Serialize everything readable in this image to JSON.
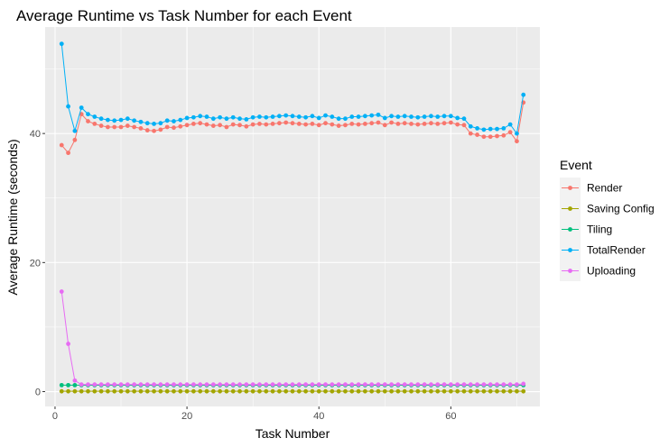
{
  "chart_data": {
    "type": "line",
    "title": "Average Runtime vs Task Number for each Event",
    "xlabel": "Task Number",
    "ylabel": "Average Runtime (seconds)",
    "xlim": [
      -1.5,
      73.5
    ],
    "ylim": [
      -2.3,
      56.5
    ],
    "xticks": [
      0,
      20,
      40,
      60
    ],
    "yticks": [
      0,
      20,
      40
    ],
    "grid": true,
    "legend": {
      "title": "Event",
      "placement": "right"
    },
    "x": [
      1,
      2,
      3,
      4,
      5,
      6,
      7,
      8,
      9,
      10,
      11,
      12,
      13,
      14,
      15,
      16,
      17,
      18,
      19,
      20,
      21,
      22,
      23,
      24,
      25,
      26,
      27,
      28,
      29,
      30,
      31,
      32,
      33,
      34,
      35,
      36,
      37,
      38,
      39,
      40,
      41,
      42,
      43,
      44,
      45,
      46,
      47,
      48,
      49,
      50,
      51,
      52,
      53,
      54,
      55,
      56,
      57,
      58,
      59,
      60,
      61,
      62,
      63,
      64,
      65,
      66,
      67,
      68,
      69,
      70,
      71
    ],
    "series": [
      {
        "name": "Render",
        "color": "#F8766D",
        "values": [
          38.2,
          37.0,
          39.0,
          43.0,
          41.9,
          41.5,
          41.2,
          41.0,
          41.0,
          41.0,
          41.2,
          41.0,
          40.8,
          40.5,
          40.4,
          40.6,
          41.0,
          40.9,
          41.1,
          41.3,
          41.5,
          41.6,
          41.4,
          41.2,
          41.3,
          41.0,
          41.4,
          41.3,
          41.1,
          41.4,
          41.5,
          41.4,
          41.5,
          41.6,
          41.7,
          41.6,
          41.5,
          41.4,
          41.5,
          41.3,
          41.6,
          41.4,
          41.2,
          41.3,
          41.5,
          41.4,
          41.5,
          41.6,
          41.7,
          41.3,
          41.7,
          41.5,
          41.6,
          41.5,
          41.4,
          41.5,
          41.6,
          41.5,
          41.6,
          41.7,
          41.4,
          41.3,
          40.0,
          39.8,
          39.5,
          39.5,
          39.6,
          39.7,
          40.2,
          38.8,
          44.8
        ]
      },
      {
        "name": "Saving Config",
        "color": "#A3A500",
        "values": [
          0.05,
          0.05,
          0.05,
          0.05,
          0.05,
          0.05,
          0.05,
          0.05,
          0.05,
          0.05,
          0.05,
          0.05,
          0.05,
          0.05,
          0.05,
          0.05,
          0.05,
          0.05,
          0.05,
          0.05,
          0.05,
          0.05,
          0.05,
          0.05,
          0.05,
          0.05,
          0.05,
          0.05,
          0.05,
          0.05,
          0.05,
          0.05,
          0.05,
          0.05,
          0.05,
          0.05,
          0.05,
          0.05,
          0.05,
          0.05,
          0.05,
          0.05,
          0.05,
          0.05,
          0.05,
          0.05,
          0.05,
          0.05,
          0.05,
          0.05,
          0.05,
          0.05,
          0.05,
          0.05,
          0.05,
          0.05,
          0.05,
          0.05,
          0.05,
          0.05,
          0.05,
          0.05,
          0.05,
          0.05,
          0.05,
          0.05,
          0.05,
          0.05,
          0.05,
          0.05,
          0.05
        ]
      },
      {
        "name": "Tiling",
        "color": "#00BF7D",
        "values": [
          1.0,
          1.0,
          1.0,
          1.0,
          1.0,
          1.0,
          1.0,
          1.0,
          1.0,
          1.0,
          1.0,
          1.0,
          1.0,
          1.0,
          1.0,
          1.0,
          1.0,
          1.0,
          1.0,
          1.0,
          1.0,
          1.0,
          1.0,
          1.0,
          1.0,
          1.0,
          1.0,
          1.0,
          1.0,
          1.0,
          1.0,
          1.0,
          1.0,
          1.0,
          1.0,
          1.0,
          1.0,
          1.0,
          1.0,
          1.0,
          1.0,
          1.0,
          1.0,
          1.0,
          1.0,
          1.0,
          1.0,
          1.0,
          1.0,
          1.0,
          1.0,
          1.0,
          1.0,
          1.0,
          1.0,
          1.0,
          1.0,
          1.0,
          1.0,
          1.0,
          1.0,
          1.0,
          1.0,
          1.0,
          1.0,
          1.0,
          1.0,
          1.0,
          1.0,
          1.0,
          1.0
        ]
      },
      {
        "name": "TotalRender",
        "color": "#00B0F6",
        "values": [
          53.9,
          44.2,
          40.4,
          44.0,
          43.0,
          42.6,
          42.3,
          42.1,
          42.0,
          42.1,
          42.3,
          42.0,
          41.8,
          41.6,
          41.5,
          41.6,
          42.0,
          41.9,
          42.1,
          42.4,
          42.5,
          42.7,
          42.6,
          42.3,
          42.5,
          42.3,
          42.5,
          42.3,
          42.2,
          42.5,
          42.6,
          42.5,
          42.6,
          42.7,
          42.8,
          42.7,
          42.6,
          42.5,
          42.7,
          42.4,
          42.8,
          42.6,
          42.3,
          42.3,
          42.6,
          42.6,
          42.7,
          42.8,
          42.9,
          42.4,
          42.7,
          42.6,
          42.7,
          42.6,
          42.5,
          42.6,
          42.7,
          42.6,
          42.7,
          42.7,
          42.4,
          42.3,
          41.1,
          40.8,
          40.6,
          40.7,
          40.7,
          40.8,
          41.4,
          40.0,
          46.0
        ]
      },
      {
        "name": "Uploading",
        "color": "#E76BF3",
        "values": [
          15.5,
          7.4,
          1.7,
          1.1,
          1.1,
          1.1,
          1.1,
          1.1,
          1.1,
          1.1,
          1.1,
          1.1,
          1.1,
          1.1,
          1.1,
          1.1,
          1.1,
          1.1,
          1.1,
          1.1,
          1.1,
          1.1,
          1.1,
          1.1,
          1.1,
          1.1,
          1.1,
          1.1,
          1.1,
          1.1,
          1.1,
          1.1,
          1.1,
          1.1,
          1.1,
          1.1,
          1.1,
          1.1,
          1.1,
          1.1,
          1.1,
          1.1,
          1.1,
          1.1,
          1.1,
          1.1,
          1.1,
          1.1,
          1.1,
          1.1,
          1.1,
          1.1,
          1.1,
          1.1,
          1.1,
          1.1,
          1.1,
          1.1,
          1.1,
          1.1,
          1.1,
          1.1,
          1.1,
          1.1,
          1.1,
          1.1,
          1.1,
          1.1,
          1.1,
          1.1,
          1.2
        ]
      }
    ]
  }
}
